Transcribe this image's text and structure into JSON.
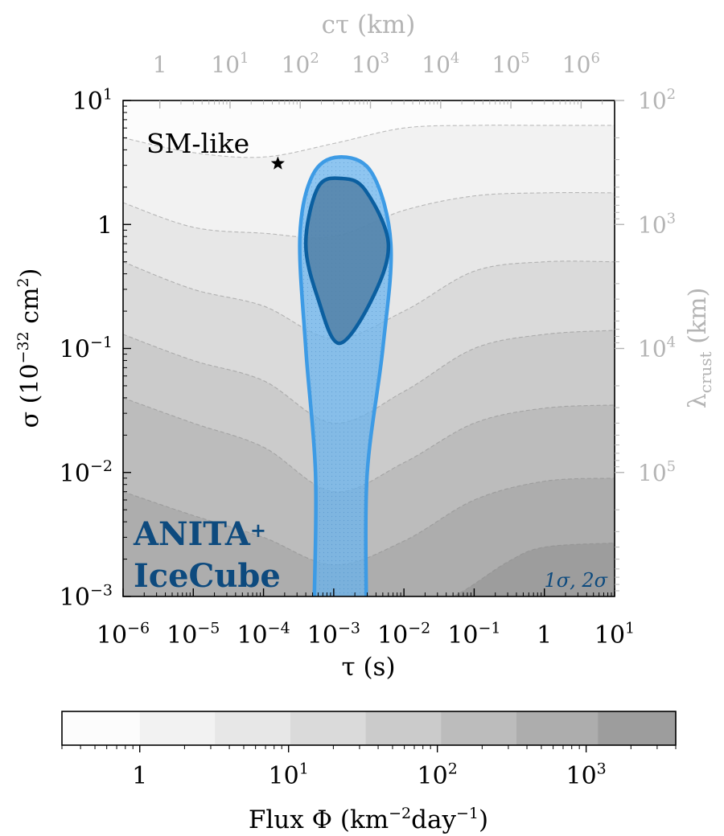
{
  "chart_data": {
    "type": "contour",
    "x_axis": {
      "label": "τ (s)",
      "scale": "log",
      "range": [
        1e-06,
        10
      ],
      "ticks": [
        {
          "value": 1e-06,
          "base": "10",
          "exp": "−6"
        },
        {
          "value": 1e-05,
          "base": "10",
          "exp": "−5"
        },
        {
          "value": 0.0001,
          "base": "10",
          "exp": "−4"
        },
        {
          "value": 0.001,
          "base": "10",
          "exp": "−3"
        },
        {
          "value": 0.01,
          "base": "10",
          "exp": "−2"
        },
        {
          "value": 0.1,
          "base": "10",
          "exp": "−1"
        },
        {
          "value": 1,
          "base": "1",
          "exp": ""
        },
        {
          "value": 10,
          "base": "10",
          "exp": "1"
        }
      ]
    },
    "y_axis": {
      "label_base": "σ (10",
      "label_exp": "−32",
      "label_unit": " cm",
      "label_unit_exp": "2",
      "label_close": ")",
      "scale": "log",
      "range": [
        0.001,
        10
      ],
      "ticks": [
        {
          "value": 0.001,
          "base": "10",
          "exp": "−3"
        },
        {
          "value": 0.01,
          "base": "10",
          "exp": "−2"
        },
        {
          "value": 0.1,
          "base": "10",
          "exp": "−1"
        },
        {
          "value": 1,
          "base": "1",
          "exp": ""
        },
        {
          "value": 10,
          "base": "10",
          "exp": "1"
        }
      ]
    },
    "top_axis": {
      "label": "cτ (km)",
      "scale": "log",
      "ticks": [
        {
          "value": 1,
          "base": "1",
          "exp": ""
        },
        {
          "value": 10,
          "base": "10",
          "exp": "1"
        },
        {
          "value": 100,
          "base": "10",
          "exp": "2"
        },
        {
          "value": 1000,
          "base": "10",
          "exp": "3"
        },
        {
          "value": 10000,
          "base": "10",
          "exp": "4"
        },
        {
          "value": 100000,
          "base": "10",
          "exp": "5"
        },
        {
          "value": 1000000,
          "base": "10",
          "exp": "6"
        }
      ]
    },
    "right_axis": {
      "label_base": "λ",
      "label_sub": "crust",
      "label_unit": " (km)",
      "scale": "log",
      "ticks": [
        {
          "value": 100,
          "base": "10",
          "exp": "2"
        },
        {
          "value": 1000,
          "base": "10",
          "exp": "3"
        },
        {
          "value": 10000,
          "base": "10",
          "exp": "4"
        },
        {
          "value": 100000,
          "base": "10",
          "exp": "5"
        }
      ]
    },
    "colorbar": {
      "label_base": "Flux Φ (km",
      "label_exp1": "−2",
      "label_mid": "day",
      "label_exp2": "−1",
      "label_close": ")",
      "scale": "log",
      "range": [
        0.3,
        4000
      ],
      "levels": [
        0.3,
        1,
        3.2,
        10.3,
        33,
        106,
        340,
        1200,
        4000
      ],
      "colors": [
        "#fcfcfc",
        "#f2f2f2",
        "#e7e7e7",
        "#dadada",
        "#cbcbcb",
        "#bcbcbc",
        "#adadad",
        "#9d9d9d"
      ],
      "ticks": [
        {
          "value": 1,
          "base": "1",
          "exp": ""
        },
        {
          "value": 10,
          "base": "10",
          "exp": "1"
        },
        {
          "value": 100,
          "base": "10",
          "exp": "2"
        },
        {
          "value": 1000,
          "base": "10",
          "exp": "3"
        }
      ]
    },
    "flux_bands": [
      {
        "level": 1,
        "color": "#f2f2f2",
        "boundary": [
          [
            1e-06,
            5
          ],
          [
            1e-05,
            3.8
          ],
          [
            0.0001,
            3.5
          ],
          [
            0.001,
            4.5
          ],
          [
            0.01,
            6
          ],
          [
            0.1,
            6.3
          ],
          [
            1,
            6.3
          ],
          [
            10,
            6.3
          ]
        ]
      },
      {
        "level": 2,
        "color": "#e7e7e7",
        "boundary": [
          [
            1e-06,
            1.5
          ],
          [
            1e-05,
            0.95
          ],
          [
            0.0001,
            0.85
          ],
          [
            0.001,
            0.8
          ],
          [
            0.01,
            1.3
          ],
          [
            0.1,
            1.7
          ],
          [
            1,
            1.8
          ],
          [
            10,
            1.8
          ]
        ]
      },
      {
        "level": 3,
        "color": "#dadada",
        "boundary": [
          [
            1e-06,
            0.5
          ],
          [
            1e-05,
            0.3
          ],
          [
            0.0001,
            0.22
          ],
          [
            0.001,
            0.12
          ],
          [
            0.01,
            0.2
          ],
          [
            0.1,
            0.42
          ],
          [
            1,
            0.5
          ],
          [
            10,
            0.5
          ]
        ]
      },
      {
        "level": 4,
        "color": "#cbcbcb",
        "boundary": [
          [
            1e-06,
            0.13
          ],
          [
            1e-05,
            0.08
          ],
          [
            0.0001,
            0.055
          ],
          [
            0.001,
            0.025
          ],
          [
            0.01,
            0.045
          ],
          [
            0.1,
            0.1
          ],
          [
            1,
            0.13
          ],
          [
            10,
            0.14
          ]
        ]
      },
      {
        "level": 5,
        "color": "#bcbcbc",
        "boundary": [
          [
            1e-06,
            0.04
          ],
          [
            1e-05,
            0.025
          ],
          [
            0.0001,
            0.016
          ],
          [
            0.001,
            0.007
          ],
          [
            0.01,
            0.012
          ],
          [
            0.1,
            0.025
          ],
          [
            1,
            0.033
          ],
          [
            10,
            0.035
          ]
        ]
      },
      {
        "level": 6,
        "color": "#adadad",
        "boundary": [
          [
            1e-06,
            0.007
          ],
          [
            1e-05,
            0.0045
          ],
          [
            0.0001,
            0.003
          ],
          [
            0.001,
            0.0018
          ],
          [
            0.01,
            0.0028
          ],
          [
            0.1,
            0.006
          ],
          [
            1,
            0.0085
          ],
          [
            10,
            0.009
          ]
        ]
      },
      {
        "level": 7,
        "color": "#9d9d9d",
        "boundary": [
          [
            1e-06,
            0.0007
          ],
          [
            0.01,
            0.0008
          ],
          [
            0.05,
            0.001
          ],
          [
            0.3,
            0.0019
          ],
          [
            1,
            0.0025
          ],
          [
            10,
            0.0027
          ]
        ]
      }
    ],
    "region_2sigma": {
      "color": "#3d9be5",
      "fill": "#66b3ef",
      "boundary": [
        [
          0.00053,
          0.001
        ],
        [
          0.00055,
          0.01
        ],
        [
          0.0004,
          0.1
        ],
        [
          0.00033,
          0.8
        ],
        [
          0.0005,
          2.5
        ],
        [
          0.0012,
          3.5
        ],
        [
          0.0035,
          2.6
        ],
        [
          0.0065,
          0.7
        ],
        [
          0.005,
          0.1
        ],
        [
          0.003,
          0.01
        ],
        [
          0.0029,
          0.001
        ]
      ]
    },
    "region_1sigma": {
      "color": "#0b5fa0",
      "fill": "#4f7ea3",
      "boundary": [
        [
          0.0012,
          0.11
        ],
        [
          0.0006,
          0.25
        ],
        [
          0.0004,
          0.7
        ],
        [
          0.0006,
          2
        ],
        [
          0.0013,
          2.35
        ],
        [
          0.0028,
          1.9
        ],
        [
          0.006,
          0.7
        ],
        [
          0.0035,
          0.25
        ]
      ]
    },
    "sm_like_point": {
      "x": 0.00016,
      "y": 3.1,
      "label": "SM-like"
    },
    "annotations": {
      "experiment_line1": "ANITA",
      "experiment_plus": "+",
      "experiment_line2": "IceCube",
      "sigma_levels": "1σ, 2σ"
    }
  }
}
